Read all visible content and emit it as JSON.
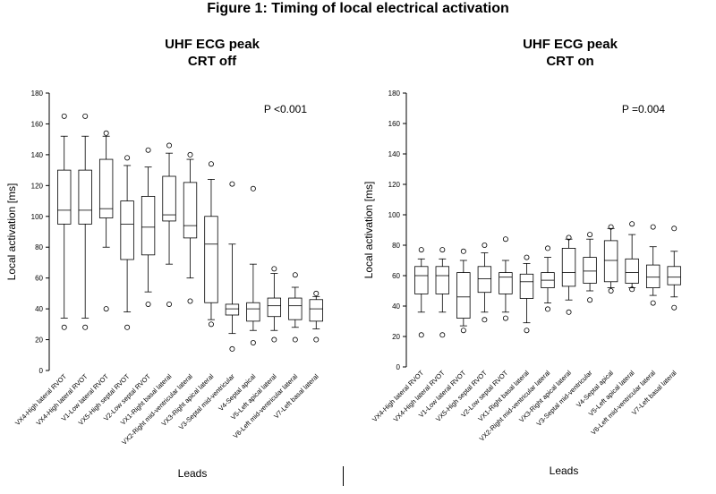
{
  "figure_title": "Figure 1: Timing of local electrical activation",
  "panels": [
    {
      "title_line1": "UHF ECG peak",
      "title_line2": "CRT off"
    },
    {
      "title_line1": "UHF ECG peak",
      "title_line2": "CRT on"
    }
  ],
  "chart_data": [
    {
      "type": "box",
      "title": "UHF ECG peak CRT off",
      "xlabel": "Leads",
      "ylabel": "Local activation [ms]",
      "ylim": [
        0,
        180
      ],
      "yticks": [
        0,
        20,
        40,
        60,
        80,
        100,
        120,
        140,
        160,
        180
      ],
      "annotation": "P <0.001",
      "categories": [
        "VX4-High lateral RVOT",
        "VX4-High lateral RVOT",
        "V1-Low lateral RVOT",
        "VX5-High septal RVOT",
        "V2-Low septal RVOT",
        "VX1-Right basal lateral",
        "VX2-Right mid-ventricular lateral",
        "VX3-Right apical lateral",
        "V3-Septal mid-ventricular",
        "V4-Septal apical",
        "V5-Left apical lateral",
        "V6-Left mid-ventricular lateral",
        "V7-Left basal lateral"
      ],
      "boxes": [
        {
          "min": 34,
          "q1": 95,
          "median": 104,
          "q3": 130,
          "max": 152,
          "outliers": [
            28,
            165
          ]
        },
        {
          "min": 34,
          "q1": 95,
          "median": 104,
          "q3": 130,
          "max": 152,
          "outliers": [
            28,
            165
          ]
        },
        {
          "min": 80,
          "q1": 99,
          "median": 105,
          "q3": 137,
          "max": 152,
          "outliers": [
            40,
            154
          ]
        },
        {
          "min": 38,
          "q1": 72,
          "median": 95,
          "q3": 110,
          "max": 133,
          "outliers": [
            28,
            138
          ]
        },
        {
          "min": 51,
          "q1": 75,
          "median": 93,
          "q3": 113,
          "max": 132,
          "outliers": [
            43,
            143
          ]
        },
        {
          "min": 69,
          "q1": 97,
          "median": 101,
          "q3": 126,
          "max": 141,
          "outliers": [
            43,
            146
          ]
        },
        {
          "min": 60,
          "q1": 86,
          "median": 94,
          "q3": 122,
          "max": 137,
          "outliers": [
            45,
            140
          ]
        },
        {
          "min": 33,
          "q1": 44,
          "median": 82,
          "q3": 100,
          "max": 124,
          "outliers": [
            30,
            134
          ]
        },
        {
          "min": 24,
          "q1": 36,
          "median": 40,
          "q3": 43,
          "max": 82,
          "outliers": [
            14,
            121
          ]
        },
        {
          "min": 26,
          "q1": 32,
          "median": 40,
          "q3": 44,
          "max": 69,
          "outliers": [
            18,
            118
          ]
        },
        {
          "min": 26,
          "q1": 35,
          "median": 42,
          "q3": 47,
          "max": 63,
          "outliers": [
            20,
            66
          ]
        },
        {
          "min": 28,
          "q1": 33,
          "median": 42,
          "q3": 47,
          "max": 54,
          "outliers": [
            20,
            62
          ]
        },
        {
          "min": 27,
          "q1": 32,
          "median": 40,
          "q3": 46,
          "max": 48,
          "outliers": [
            20,
            50
          ]
        }
      ]
    },
    {
      "type": "box",
      "title": "UHF ECG peak CRT on",
      "xlabel": "Leads",
      "ylabel": "Local activation [ms]",
      "ylim": [
        0,
        180
      ],
      "yticks": [
        0,
        20,
        40,
        60,
        80,
        100,
        120,
        140,
        160,
        180
      ],
      "annotation": "P =0.004",
      "categories": [
        "VX4-High lateral RVOT",
        "VX4-High lateral RVOT",
        "V1-Low lateral RVOT",
        "VX5-High septal RVOT",
        "V2-Low septal RVOT",
        "VX1-Right basal lateral",
        "VX2-Right mid-ventricular lateral",
        "VX3-Right apical lateral",
        "V3-Septal mid-ventricular",
        "V4-Septal apical",
        "V5-Left apical lateral",
        "V6-Left mid-ventricular lateral",
        "V7-Left basal lateral"
      ],
      "boxes": [
        {
          "min": 36,
          "q1": 48,
          "median": 60,
          "q3": 66,
          "max": 71,
          "outliers": [
            21,
            77
          ]
        },
        {
          "min": 36,
          "q1": 48,
          "median": 60,
          "q3": 66,
          "max": 71,
          "outliers": [
            21,
            77
          ]
        },
        {
          "min": 27,
          "q1": 32,
          "median": 46,
          "q3": 62,
          "max": 70,
          "outliers": [
            24,
            76
          ]
        },
        {
          "min": 36,
          "q1": 49,
          "median": 58,
          "q3": 66,
          "max": 75,
          "outliers": [
            31,
            80
          ]
        },
        {
          "min": 36,
          "q1": 48,
          "median": 59,
          "q3": 62,
          "max": 70,
          "outliers": [
            32,
            84
          ]
        },
        {
          "min": 29,
          "q1": 45,
          "median": 56,
          "q3": 61,
          "max": 68,
          "outliers": [
            24,
            72
          ]
        },
        {
          "min": 42,
          "q1": 52,
          "median": 57,
          "q3": 62,
          "max": 72,
          "outliers": [
            38,
            78
          ]
        },
        {
          "min": 44,
          "q1": 53,
          "median": 62,
          "q3": 78,
          "max": 84,
          "outliers": [
            36,
            85
          ]
        },
        {
          "min": 50,
          "q1": 55,
          "median": 63,
          "q3": 72,
          "max": 84,
          "outliers": [
            44,
            87
          ]
        },
        {
          "min": 52,
          "q1": 56,
          "median": 70,
          "q3": 83,
          "max": 91,
          "outliers": [
            50,
            92
          ]
        },
        {
          "min": 52,
          "q1": 55,
          "median": 62,
          "q3": 71,
          "max": 87,
          "outliers": [
            51,
            94
          ]
        },
        {
          "min": 47,
          "q1": 52,
          "median": 59,
          "q3": 67,
          "max": 79,
          "outliers": [
            42,
            92
          ]
        },
        {
          "min": 46,
          "q1": 54,
          "median": 59,
          "q3": 66,
          "max": 76,
          "outliers": [
            39,
            91
          ]
        }
      ]
    }
  ]
}
